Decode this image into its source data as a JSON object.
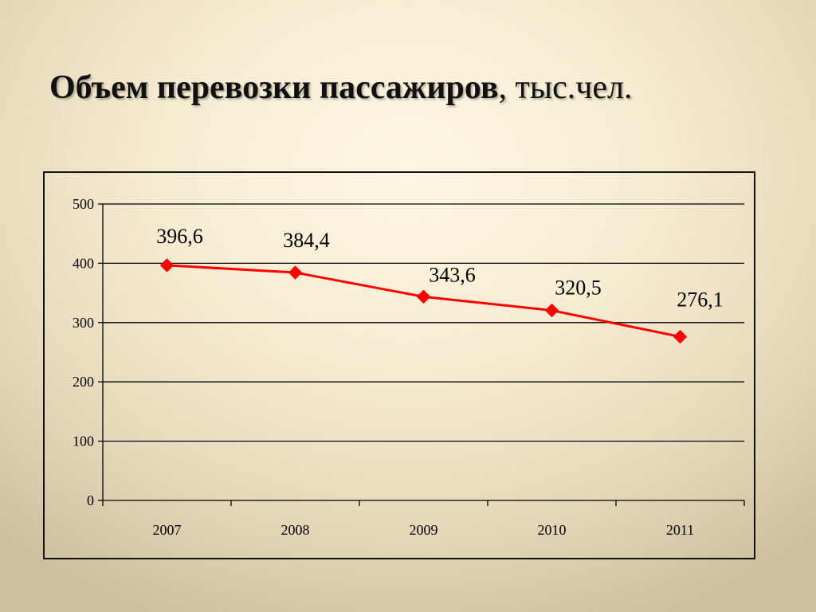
{
  "slide": {
    "title_bold": "Объем перевозки пассажиров",
    "title_rest": ", тыс.чел."
  },
  "chart_data": {
    "type": "line",
    "categories": [
      "2007",
      "2008",
      "2009",
      "2010",
      "2011"
    ],
    "series": [
      {
        "values": [
          396.6,
          384.4,
          343.6,
          320.5,
          276.1
        ]
      }
    ],
    "data_labels": [
      "396,6",
      "384,4",
      "343,6",
      "320,5",
      "276,1"
    ],
    "title": "",
    "xlabel": "",
    "ylabel": "",
    "ylim": [
      0,
      500
    ],
    "yticks": [
      0,
      100,
      200,
      300,
      400,
      500
    ],
    "grid": true,
    "line_color": "#ff0000",
    "marker": "diamond"
  }
}
